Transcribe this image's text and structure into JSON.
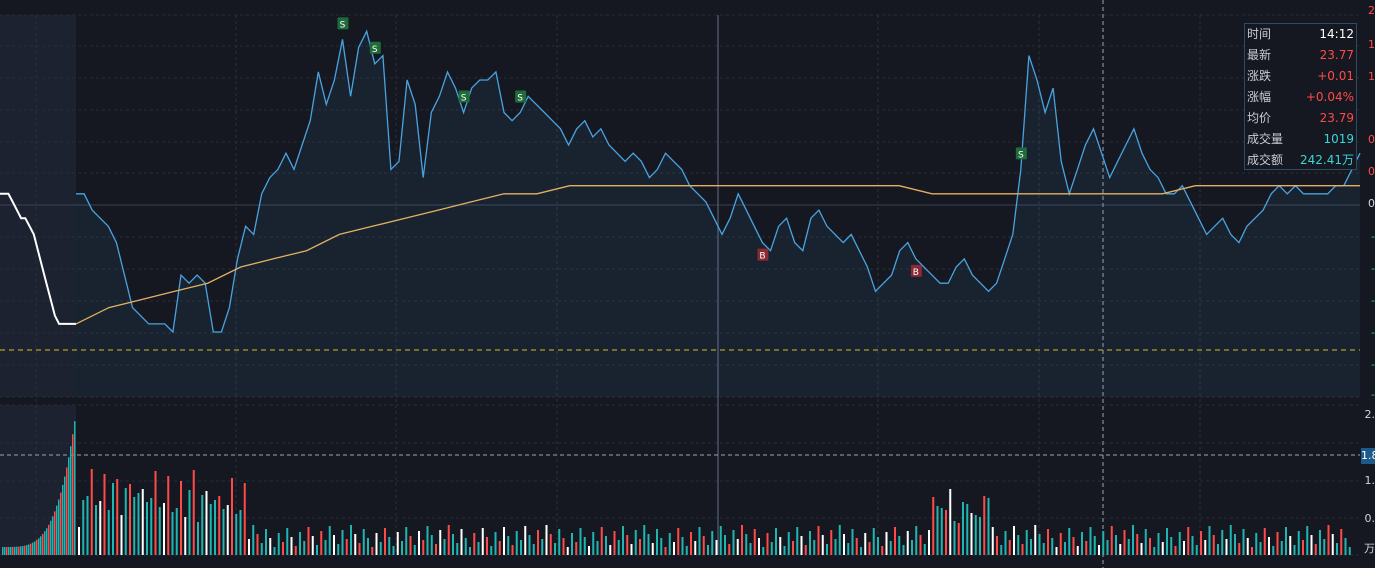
{
  "colors": {
    "price": "#4aa3e0",
    "avg": "#e3b063",
    "up": "#ff4a4a",
    "down": "#1fb5b0",
    "white": "#ffffff",
    "prevClose": "#d9c126",
    "sell_badge": "#1f6b3a",
    "buy_badge": "#8a2a35"
  },
  "info": {
    "time_label": "时间",
    "time": "14:12",
    "last_label": "最新",
    "last": "23.77",
    "chg_label": "涨跌",
    "chg": "+0.01",
    "pct_label": "涨幅",
    "pct": "+0.04%",
    "avg_label": "均价",
    "avg": "23.79",
    "vol_label": "成交量",
    "vol": "1019",
    "amt_label": "成交额",
    "amt": "242.41万"
  },
  "right_axis": {
    "price_ticks_up": [
      "2",
      "1",
      "1",
      "0",
      "0"
    ],
    "price_mid": "0",
    "price_ticks_down": [
      "-",
      "-",
      "-",
      "-",
      "-",
      "-"
    ],
    "vol_ticks": [
      "2.",
      "1.",
      "0."
    ],
    "vol_unit": "万",
    "vol_badge": "1.8"
  },
  "chart_data": {
    "type": "line",
    "price_range": [
      -25,
      22
    ],
    "series": [
      {
        "name": "",
        "values": [
          0,
          0,
          -2,
          -3,
          -4,
          -6,
          -10,
          -14,
          -15,
          -16,
          -16,
          -16,
          -17,
          -10,
          -11,
          -10,
          -11,
          -17,
          -17,
          -14,
          -8,
          -4,
          -5,
          0,
          2,
          3,
          5,
          3,
          6,
          9,
          15,
          11,
          14,
          19,
          12,
          18,
          20,
          16,
          17,
          3,
          4,
          14,
          11,
          2,
          10,
          12,
          15,
          13,
          10,
          13,
          14,
          14,
          15,
          10,
          9,
          10,
          12,
          11,
          10,
          9,
          8,
          6,
          8,
          9,
          7,
          8,
          6,
          5,
          4,
          5,
          4,
          2,
          3,
          5,
          4,
          3,
          1,
          0,
          -1,
          -3,
          -5,
          -3,
          0,
          -2,
          -4,
          -6,
          -7,
          -4,
          -3,
          -6,
          -7,
          -3,
          -2,
          -4,
          -5,
          -6,
          -5,
          -7,
          -9,
          -12,
          -11,
          -10,
          -7,
          -6,
          -8,
          -9,
          -10,
          -11,
          -11,
          -9,
          -8,
          -10,
          -11,
          -12,
          -11,
          -8,
          -5,
          3,
          17,
          14,
          10,
          13,
          4,
          0,
          3,
          6,
          8,
          5,
          2,
          4,
          6,
          8,
          5,
          3,
          2,
          0,
          0,
          1,
          -1,
          -3,
          -5,
          -4,
          -3,
          -5,
          -6,
          -4,
          -3,
          -2,
          0,
          1,
          0,
          1,
          0,
          0,
          0,
          0,
          1,
          1,
          3,
          5
        ]
      },
      {
        "name": "",
        "values": [
          -16,
          -14,
          -13,
          -12,
          -11,
          -9,
          -8,
          -7,
          -5,
          -4,
          -3,
          -2,
          -1,
          0,
          0,
          1,
          1,
          1,
          1,
          1,
          1,
          1,
          1,
          1,
          1,
          1,
          0,
          0,
          0,
          0,
          0,
          0,
          0,
          0,
          1,
          1,
          1,
          1,
          1,
          1
        ]
      }
    ],
    "buy_markers": [
      "B",
      "B"
    ],
    "sell_markers": [
      "S",
      "S",
      "S",
      "S",
      "S"
    ]
  }
}
